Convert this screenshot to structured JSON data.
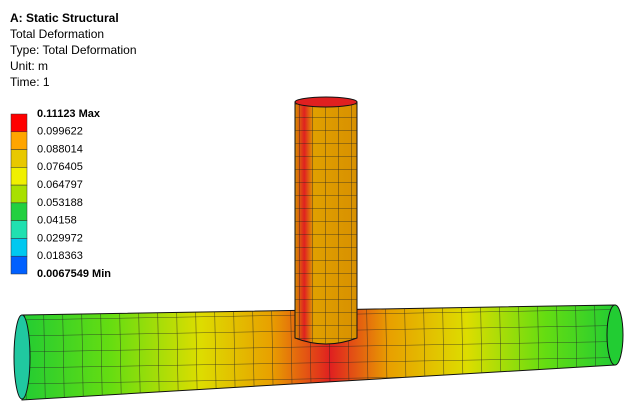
{
  "header": {
    "title": "A: Static Structural",
    "lines": [
      "Total Deformation",
      "Type: Total Deformation",
      "Unit: m",
      "Time: 1"
    ]
  },
  "legend": {
    "labels": [
      "0.11123 Max",
      "0.099622",
      "0.088014",
      "0.076405",
      "0.064797",
      "0.053188",
      "0.04158",
      "0.029972",
      "0.018363",
      "0.0067549 Min"
    ],
    "colors": [
      "#ff0000",
      "#ffa500",
      "#e8c800",
      "#f0f000",
      "#a8e000",
      "#22d040",
      "#20e0b0",
      "#00c8f0",
      "#0060ff"
    ]
  }
}
